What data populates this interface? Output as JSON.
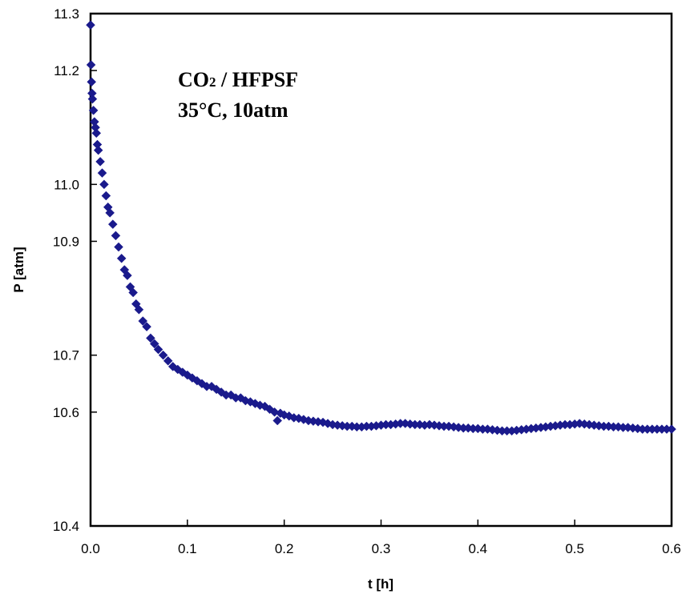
{
  "chart_data": {
    "type": "scatter",
    "title": "",
    "xlabel": "t [h]",
    "ylabel": "P [atm]",
    "xlim": [
      0.0,
      0.6
    ],
    "ylim": [
      10.4,
      11.3
    ],
    "x_ticks": [
      "0.0",
      "0.1",
      "0.2",
      "0.3",
      "0.4",
      "0.5",
      "0.6"
    ],
    "y_ticks": [
      "10.4",
      "10.6",
      "10.7",
      "10.9",
      "11.0",
      "11.2",
      "11.3"
    ],
    "y_tick_values": [
      10.4,
      10.6,
      10.7,
      10.9,
      11.0,
      11.2,
      11.3
    ],
    "grid": false,
    "legend": "none",
    "marker": "diamond",
    "marker_color": "#1a1a8c",
    "annotation": {
      "line1_main": "CO",
      "line1_sub": "2",
      "line1_rest": " / HFPSF",
      "line2": "35°C, 10atm"
    },
    "series": [
      {
        "x": [
          0.0,
          0.0005,
          0.001,
          0.0015,
          0.002,
          0.003,
          0.004,
          0.005,
          0.006,
          0.007,
          0.008,
          0.01,
          0.012,
          0.014,
          0.016,
          0.018,
          0.02,
          0.023,
          0.026,
          0.029,
          0.032,
          0.035,
          0.038,
          0.041,
          0.044,
          0.047,
          0.05,
          0.054,
          0.058,
          0.062,
          0.066,
          0.07,
          0.075,
          0.08,
          0.085,
          0.09,
          0.095,
          0.1,
          0.105,
          0.11,
          0.115,
          0.12,
          0.125,
          0.13,
          0.135,
          0.14,
          0.145,
          0.15,
          0.155,
          0.16,
          0.165,
          0.17,
          0.175,
          0.18,
          0.185,
          0.19,
          0.193,
          0.196,
          0.2,
          0.205,
          0.21,
          0.215,
          0.22,
          0.225,
          0.23,
          0.235,
          0.24,
          0.245,
          0.25,
          0.255,
          0.26,
          0.265,
          0.27,
          0.275,
          0.28,
          0.285,
          0.29,
          0.295,
          0.3,
          0.305,
          0.31,
          0.315,
          0.32,
          0.325,
          0.33,
          0.335,
          0.34,
          0.345,
          0.35,
          0.355,
          0.36,
          0.365,
          0.37,
          0.375,
          0.38,
          0.385,
          0.39,
          0.395,
          0.4,
          0.405,
          0.41,
          0.415,
          0.42,
          0.425,
          0.43,
          0.435,
          0.44,
          0.445,
          0.45,
          0.455,
          0.46,
          0.465,
          0.47,
          0.475,
          0.48,
          0.485,
          0.49,
          0.495,
          0.5,
          0.505,
          0.51,
          0.515,
          0.52,
          0.525,
          0.53,
          0.535,
          0.54,
          0.545,
          0.55,
          0.555,
          0.56,
          0.565,
          0.57,
          0.575,
          0.58,
          0.585,
          0.59,
          0.595,
          0.6
        ],
        "y": [
          11.28,
          11.21,
          11.18,
          11.16,
          11.15,
          11.13,
          11.11,
          11.1,
          11.09,
          11.07,
          11.06,
          11.04,
          11.02,
          11.0,
          10.98,
          10.96,
          10.95,
          10.93,
          10.91,
          10.89,
          10.87,
          10.85,
          10.84,
          10.82,
          10.81,
          10.79,
          10.78,
          10.76,
          10.75,
          10.73,
          10.72,
          10.71,
          10.7,
          10.69,
          10.68,
          10.675,
          10.67,
          10.665,
          10.66,
          10.655,
          10.65,
          10.645,
          10.645,
          10.64,
          10.635,
          10.63,
          10.63,
          10.625,
          10.625,
          10.62,
          10.618,
          10.615,
          10.612,
          10.61,
          10.605,
          10.6,
          10.585,
          10.598,
          10.595,
          10.593,
          10.59,
          10.589,
          10.587,
          10.585,
          10.584,
          10.583,
          10.582,
          10.58,
          10.578,
          10.577,
          10.576,
          10.575,
          10.575,
          10.574,
          10.574,
          10.575,
          10.575,
          10.576,
          10.577,
          10.578,
          10.578,
          10.579,
          10.58,
          10.58,
          10.579,
          10.578,
          10.578,
          10.577,
          10.578,
          10.577,
          10.576,
          10.575,
          10.575,
          10.574,
          10.573,
          10.572,
          10.572,
          10.571,
          10.571,
          10.57,
          10.57,
          10.569,
          10.568,
          10.567,
          10.567,
          10.567,
          10.568,
          10.569,
          10.57,
          10.571,
          10.572,
          10.573,
          10.574,
          10.575,
          10.576,
          10.577,
          10.578,
          10.578,
          10.579,
          10.58,
          10.579,
          10.578,
          10.577,
          10.576,
          10.575,
          10.575,
          10.574,
          10.574,
          10.573,
          10.573,
          10.572,
          10.571,
          10.57,
          10.57,
          10.57,
          10.57,
          10.57,
          10.57,
          10.57
        ]
      }
    ]
  }
}
